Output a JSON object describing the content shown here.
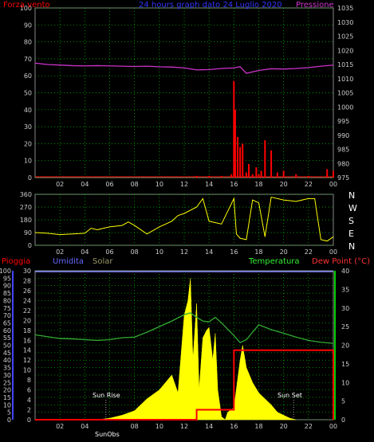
{
  "header": {
    "title": "24 hours graph dato 24 Luglio 2020",
    "left_label": "Forza vento",
    "right_label": "Pressione"
  },
  "compass": [
    "N",
    "W",
    "S",
    "E",
    "N"
  ],
  "bottom_labels": {
    "pioggia": "Pioggia",
    "umidita": "Umidita",
    "solar": "Solar",
    "temperatura": "Temperatura",
    "dewpoint": "Dew Point (°C)"
  },
  "annotations": {
    "sunrise": "Sun Rise",
    "sunset": "Sun Set",
    "sunobs": "SunObs"
  },
  "colors": {
    "wind": "#ff0000",
    "wind_gust": "#00cc00",
    "pressure": "#cc33cc",
    "direction": "#ffff00",
    "solar": "#ffff00",
    "temperature": "#33aa33",
    "humidity": "#8888ff",
    "rain": "#ff0000",
    "grid": "#00cc00",
    "axis_left": "#4444ff",
    "axis_right": "#00cc00"
  },
  "chart_data": [
    {
      "type": "line",
      "name": "wind-pressure",
      "x_ticks": [
        "02",
        "04",
        "06",
        "08",
        "10",
        "12",
        "14",
        "16",
        "18",
        "20",
        "22",
        "00"
      ],
      "y_left_ticks": [
        "0",
        "10",
        "20",
        "30",
        "40",
        "50",
        "60",
        "70",
        "80",
        "90",
        "100"
      ],
      "y_right_ticks": [
        "975",
        "980",
        "985",
        "990",
        "995",
        "1000",
        "1005",
        "1010",
        "1015",
        "1020",
        "1025",
        "1030",
        "1035"
      ],
      "ylim_left": [
        0,
        100
      ],
      "ylim_right": [
        975,
        1035
      ],
      "series": [
        {
          "name": "Pressione",
          "axis": "right",
          "x": [
            0,
            1,
            2,
            3,
            4,
            5,
            6,
            7,
            8,
            9,
            10,
            11,
            12,
            13,
            14,
            15,
            16,
            16.5,
            17,
            18,
            19,
            20,
            21,
            22,
            23,
            24
          ],
          "y": [
            1015.5,
            1015,
            1014.8,
            1014.6,
            1014.5,
            1014.6,
            1014.5,
            1014.4,
            1014.3,
            1014.4,
            1014.2,
            1014.1,
            1013.8,
            1013.1,
            1013.2,
            1013.6,
            1013.8,
            1014.2,
            1011.9,
            1012.9,
            1013.5,
            1013.4,
            1013.6,
            1013.9,
            1014.4,
            1014.8
          ]
        },
        {
          "name": "Forza vento",
          "axis": "left",
          "x": [
            0,
            12.5,
            13,
            14,
            15,
            15.8,
            16,
            16.1,
            16.3,
            16.5,
            16.7,
            17,
            17.2,
            17.5,
            17.8,
            18,
            18.2,
            18.5,
            19,
            19.5,
            20,
            21,
            22,
            23,
            23.5,
            24
          ],
          "y": [
            0,
            0,
            1,
            1,
            1,
            2,
            57,
            40,
            24,
            18,
            20,
            3,
            8,
            2,
            6,
            2,
            4,
            22,
            16,
            3,
            4,
            2,
            1,
            0,
            5,
            4
          ]
        }
      ]
    },
    {
      "type": "scatter",
      "name": "wind-direction",
      "y_ticks": [
        "0",
        "90",
        "180",
        "270",
        "360"
      ],
      "ylim": [
        0,
        360
      ],
      "x": [
        0,
        1,
        2,
        3,
        4,
        4.5,
        5,
        6,
        7,
        7.5,
        8,
        9,
        10,
        11,
        11.5,
        12,
        13,
        13.5,
        14,
        15,
        15.5,
        16,
        16.2,
        16.5,
        17,
        17.5,
        18,
        18.5,
        19,
        20,
        21,
        22,
        22.5,
        23,
        23.5,
        24
      ],
      "y": [
        90,
        85,
        75,
        80,
        85,
        120,
        110,
        130,
        140,
        165,
        140,
        80,
        130,
        170,
        210,
        225,
        270,
        330,
        170,
        150,
        240,
        330,
        80,
        50,
        40,
        320,
        300,
        60,
        340,
        320,
        310,
        330,
        330,
        40,
        30,
        60
      ]
    },
    {
      "type": "area",
      "name": "meteo",
      "y_left_ticks": [
        "0",
        "5",
        "10",
        "15",
        "20",
        "25",
        "30",
        "35",
        "40",
        "45",
        "50",
        "55",
        "60",
        "65",
        "70",
        "75",
        "80",
        "85",
        "90",
        "95",
        "100"
      ],
      "y_mid_ticks": [
        "0",
        "2",
        "4",
        "6",
        "8",
        "10",
        "12",
        "14",
        "16",
        "18",
        "20",
        "22",
        "24",
        "26",
        "28",
        "30"
      ],
      "y_right_ticks": [
        "0",
        "5",
        "10",
        "15",
        "20",
        "25",
        "30",
        "35",
        "40"
      ],
      "series": [
        {
          "name": "Temperatura",
          "x": [
            0,
            1,
            2,
            3,
            4,
            5,
            6,
            7,
            8,
            9,
            10,
            11,
            12,
            12.5,
            13,
            13.5,
            14,
            14.5,
            15,
            16,
            16.5,
            17,
            18,
            19,
            20,
            21,
            22,
            23,
            24
          ],
          "y": [
            22.8,
            22.3,
            21.8,
            21.7,
            21.5,
            21.3,
            21.5,
            22.0,
            22.2,
            23.5,
            25,
            26.5,
            28.2,
            28.7,
            27.5,
            26.5,
            26.3,
            27.5,
            26,
            22.6,
            20.7,
            21.5,
            25.5,
            24.2,
            23.2,
            22.2,
            21.3,
            20.8,
            20.5
          ]
        },
        {
          "name": "Umidita",
          "x": [
            0,
            24
          ],
          "y": [
            100,
            100
          ]
        },
        {
          "name": "Solar",
          "x": [
            5,
            6,
            7,
            8,
            9,
            10,
            11,
            11.5,
            12,
            12.3,
            12.5,
            12.7,
            13,
            13.2,
            13.5,
            13.8,
            14,
            14.3,
            14.5,
            14.7,
            15,
            15.3,
            15.5,
            16,
            16.5,
            16.7,
            17,
            17.5,
            18,
            18.5,
            19,
            19.5,
            20,
            20.5,
            21
          ],
          "y": [
            0,
            1,
            3,
            6,
            14,
            20,
            30,
            18,
            70,
            80,
            95,
            40,
            78,
            20,
            55,
            60,
            62,
            40,
            58,
            20,
            2,
            0,
            5,
            8,
            40,
            50,
            35,
            25,
            18,
            14,
            10,
            5,
            3,
            1,
            0
          ]
        },
        {
          "name": "Pioggia",
          "x": [
            0,
            13,
            13,
            16,
            16,
            24
          ],
          "y": [
            0,
            0,
            2,
            2,
            14,
            14
          ]
        }
      ]
    }
  ]
}
